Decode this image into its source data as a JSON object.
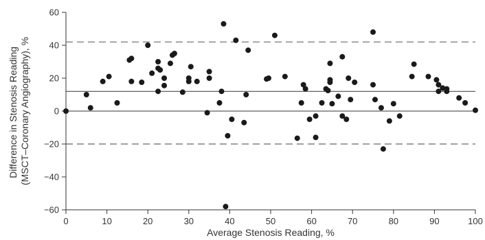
{
  "chart_data": {
    "type": "scatter",
    "title": "",
    "xlabel": "Average Stenosis Reading, %",
    "ylabel_lines": [
      "Difference in Stenosis Reading",
      "(MSCT–Coronary Angiography), %"
    ],
    "xlim": [
      0,
      100
    ],
    "ylim": [
      -60,
      60
    ],
    "xticks": [
      0,
      10,
      20,
      30,
      40,
      50,
      60,
      70,
      80,
      90,
      100
    ],
    "yticks": [
      -60,
      -40,
      -20,
      0,
      20,
      40,
      60
    ],
    "grid": false,
    "mean_line": 12,
    "limits_of_agreement": [
      42,
      -20
    ],
    "zero_line": 0,
    "points": [
      [
        0,
        0
      ],
      [
        5,
        10
      ],
      [
        6,
        2
      ],
      [
        9,
        18
      ],
      [
        10.5,
        21
      ],
      [
        12.5,
        5
      ],
      [
        15.5,
        31
      ],
      [
        16,
        32
      ],
      [
        16,
        18
      ],
      [
        18.5,
        17.5
      ],
      [
        20,
        40
      ],
      [
        21,
        23
      ],
      [
        22.5,
        30
      ],
      [
        22.5,
        26
      ],
      [
        22.5,
        12
      ],
      [
        23,
        25
      ],
      [
        24,
        20
      ],
      [
        24,
        15.5
      ],
      [
        25.5,
        29
      ],
      [
        26,
        34
      ],
      [
        26.5,
        35
      ],
      [
        28.5,
        11.5
      ],
      [
        30,
        20
      ],
      [
        30.5,
        27
      ],
      [
        30,
        18
      ],
      [
        32,
        18
      ],
      [
        34.5,
        -1
      ],
      [
        35,
        20
      ],
      [
        35,
        24
      ],
      [
        37.5,
        5
      ],
      [
        38,
        12
      ],
      [
        38.5,
        53
      ],
      [
        39,
        -58
      ],
      [
        39.5,
        -15
      ],
      [
        40.5,
        -5
      ],
      [
        41.5,
        43
      ],
      [
        43.5,
        -7
      ],
      [
        44,
        10
      ],
      [
        44.5,
        37
      ],
      [
        49,
        19.5
      ],
      [
        49.5,
        20
      ],
      [
        51,
        46
      ],
      [
        53.5,
        21
      ],
      [
        56.5,
        -16.5
      ],
      [
        57.5,
        5
      ],
      [
        58,
        16
      ],
      [
        58.5,
        13.5
      ],
      [
        59.5,
        -5
      ],
      [
        61,
        -16
      ],
      [
        61,
        -3
      ],
      [
        62.5,
        5
      ],
      [
        63.5,
        13.5
      ],
      [
        64,
        12.5
      ],
      [
        64.5,
        29
      ],
      [
        64.5,
        19
      ],
      [
        64.5,
        17.5
      ],
      [
        65,
        4.5
      ],
      [
        66.5,
        9
      ],
      [
        67.5,
        33
      ],
      [
        67.5,
        -3
      ],
      [
        68.5,
        -5
      ],
      [
        69,
        20
      ],
      [
        69.5,
        7
      ],
      [
        70.5,
        17.5
      ],
      [
        75,
        48
      ],
      [
        75,
        16
      ],
      [
        75.5,
        7
      ],
      [
        77,
        2
      ],
      [
        77.5,
        -23
      ],
      [
        79,
        -6
      ],
      [
        80,
        4.5
      ],
      [
        81.5,
        -3
      ],
      [
        84.5,
        21
      ],
      [
        85,
        28.5
      ],
      [
        88.5,
        21
      ],
      [
        90.5,
        19
      ],
      [
        91,
        16
      ],
      [
        91,
        12
      ],
      [
        92,
        14
      ],
      [
        93,
        12
      ],
      [
        93,
        13.5
      ],
      [
        96,
        8
      ],
      [
        97.5,
        5
      ],
      [
        100,
        0.5
      ]
    ]
  }
}
